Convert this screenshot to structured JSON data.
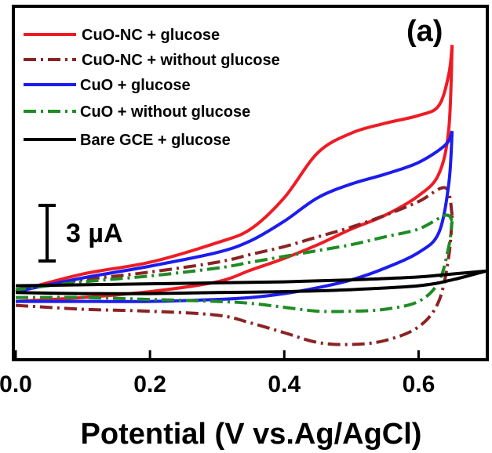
{
  "chart_data": {
    "type": "line",
    "panel_label": "(a)",
    "xlabel": "Potential (V vs.Ag/AgCl)",
    "ylabel": "",
    "xlim": [
      0.0,
      0.7
    ],
    "ylim": [
      -3.7,
      14.2
    ],
    "x_ticks": [
      "0.0",
      "0.2",
      "0.4",
      "0.6"
    ],
    "x_tick_values": [
      0.0,
      0.2,
      0.4,
      0.6
    ],
    "grid": false,
    "legend_position": "top-left",
    "scale_bar": {
      "label": "3 µA",
      "value_uA": 3
    },
    "series": [
      {
        "name": "CuO-NC  + glucose",
        "color": "#ee1c25",
        "style": "solid",
        "forward": [
          [
            0.0,
            -0.8
          ],
          [
            0.1,
            -0.6
          ],
          [
            0.2,
            -0.3
          ],
          [
            0.3,
            0.2
          ],
          [
            0.35,
            0.8
          ],
          [
            0.4,
            1.4
          ],
          [
            0.45,
            2.1
          ],
          [
            0.5,
            2.9
          ],
          [
            0.55,
            3.6
          ],
          [
            0.6,
            4.6
          ],
          [
            0.63,
            5.7
          ],
          [
            0.645,
            8.0
          ],
          [
            0.65,
            12.3
          ]
        ],
        "reverse": [
          [
            0.65,
            12.3
          ],
          [
            0.645,
            10.8
          ],
          [
            0.63,
            9.2
          ],
          [
            0.6,
            8.7
          ],
          [
            0.55,
            8.3
          ],
          [
            0.5,
            7.8
          ],
          [
            0.45,
            6.8
          ],
          [
            0.4,
            4.5
          ],
          [
            0.35,
            2.9
          ],
          [
            0.3,
            2.2
          ],
          [
            0.2,
            1.2
          ],
          [
            0.1,
            0.6
          ],
          [
            0.0,
            -0.3
          ]
        ]
      },
      {
        "name": "CuO-NC  + without glucose",
        "color": "#8b2323",
        "style": "dashdot",
        "forward": [
          [
            0.0,
            -1.0
          ],
          [
            0.1,
            -1.2
          ],
          [
            0.2,
            -1.3
          ],
          [
            0.3,
            -1.5
          ],
          [
            0.35,
            -1.9
          ],
          [
            0.4,
            -2.4
          ],
          [
            0.45,
            -2.9
          ],
          [
            0.5,
            -3.0
          ],
          [
            0.55,
            -2.8
          ],
          [
            0.6,
            -2.1
          ],
          [
            0.63,
            -0.8
          ],
          [
            0.645,
            1.5
          ],
          [
            0.65,
            3.6
          ]
        ],
        "reverse": [
          [
            0.65,
            3.6
          ],
          [
            0.64,
            5.0
          ],
          [
            0.6,
            4.3
          ],
          [
            0.55,
            3.6
          ],
          [
            0.5,
            3.0
          ],
          [
            0.45,
            2.5
          ],
          [
            0.4,
            2.0
          ],
          [
            0.35,
            1.6
          ],
          [
            0.3,
            1.2
          ],
          [
            0.2,
            0.7
          ],
          [
            0.1,
            0.3
          ],
          [
            0.0,
            -0.2
          ]
        ]
      },
      {
        "name": "CuO + glucose",
        "color": "#1c1cee",
        "style": "solid",
        "forward": [
          [
            0.0,
            -0.8
          ],
          [
            0.1,
            -0.8
          ],
          [
            0.2,
            -0.8
          ],
          [
            0.3,
            -0.7
          ],
          [
            0.35,
            -0.6
          ],
          [
            0.4,
            -0.4
          ],
          [
            0.45,
            -0.1
          ],
          [
            0.5,
            0.3
          ],
          [
            0.55,
            0.9
          ],
          [
            0.6,
            1.7
          ],
          [
            0.63,
            2.7
          ],
          [
            0.645,
            5.2
          ],
          [
            0.65,
            7.9
          ]
        ],
        "reverse": [
          [
            0.65,
            7.9
          ],
          [
            0.64,
            7.2
          ],
          [
            0.6,
            6.3
          ],
          [
            0.55,
            5.7
          ],
          [
            0.5,
            5.2
          ],
          [
            0.45,
            4.5
          ],
          [
            0.4,
            3.3
          ],
          [
            0.35,
            2.3
          ],
          [
            0.3,
            1.7
          ],
          [
            0.2,
            1.0
          ],
          [
            0.1,
            0.4
          ],
          [
            0.0,
            -0.3
          ]
        ]
      },
      {
        "name": "CuO + without glucose",
        "color": "#1f8b24",
        "style": "dashdot",
        "forward": [
          [
            0.0,
            -0.6
          ],
          [
            0.1,
            -0.6
          ],
          [
            0.2,
            -0.7
          ],
          [
            0.3,
            -0.8
          ],
          [
            0.35,
            -0.9
          ],
          [
            0.4,
            -1.1
          ],
          [
            0.45,
            -1.3
          ],
          [
            0.5,
            -1.3
          ],
          [
            0.55,
            -1.2
          ],
          [
            0.6,
            -0.8
          ],
          [
            0.63,
            0.2
          ],
          [
            0.645,
            2.0
          ],
          [
            0.65,
            3.3
          ]
        ],
        "reverse": [
          [
            0.65,
            3.3
          ],
          [
            0.64,
            3.6
          ],
          [
            0.6,
            2.9
          ],
          [
            0.55,
            2.5
          ],
          [
            0.5,
            2.1
          ],
          [
            0.45,
            1.8
          ],
          [
            0.4,
            1.5
          ],
          [
            0.35,
            1.2
          ],
          [
            0.3,
            0.9
          ],
          [
            0.2,
            0.5
          ],
          [
            0.1,
            0.2
          ],
          [
            0.0,
            -0.2
          ]
        ]
      },
      {
        "name": "Bare GCE + glucose",
        "color": "#000000",
        "style": "solid",
        "forward": [
          [
            0.0,
            0.0
          ],
          [
            0.1,
            0.05
          ],
          [
            0.2,
            0.1
          ],
          [
            0.3,
            0.15
          ],
          [
            0.4,
            0.2
          ],
          [
            0.5,
            0.3
          ],
          [
            0.6,
            0.45
          ],
          [
            0.65,
            0.6
          ],
          [
            0.7,
            0.75
          ]
        ],
        "reverse": [
          [
            0.7,
            0.75
          ],
          [
            0.65,
            0.3
          ],
          [
            0.6,
            0.0
          ],
          [
            0.5,
            -0.2
          ],
          [
            0.4,
            -0.3
          ],
          [
            0.3,
            -0.35
          ],
          [
            0.2,
            -0.4
          ],
          [
            0.1,
            -0.4
          ],
          [
            0.0,
            -0.35
          ]
        ]
      }
    ]
  }
}
